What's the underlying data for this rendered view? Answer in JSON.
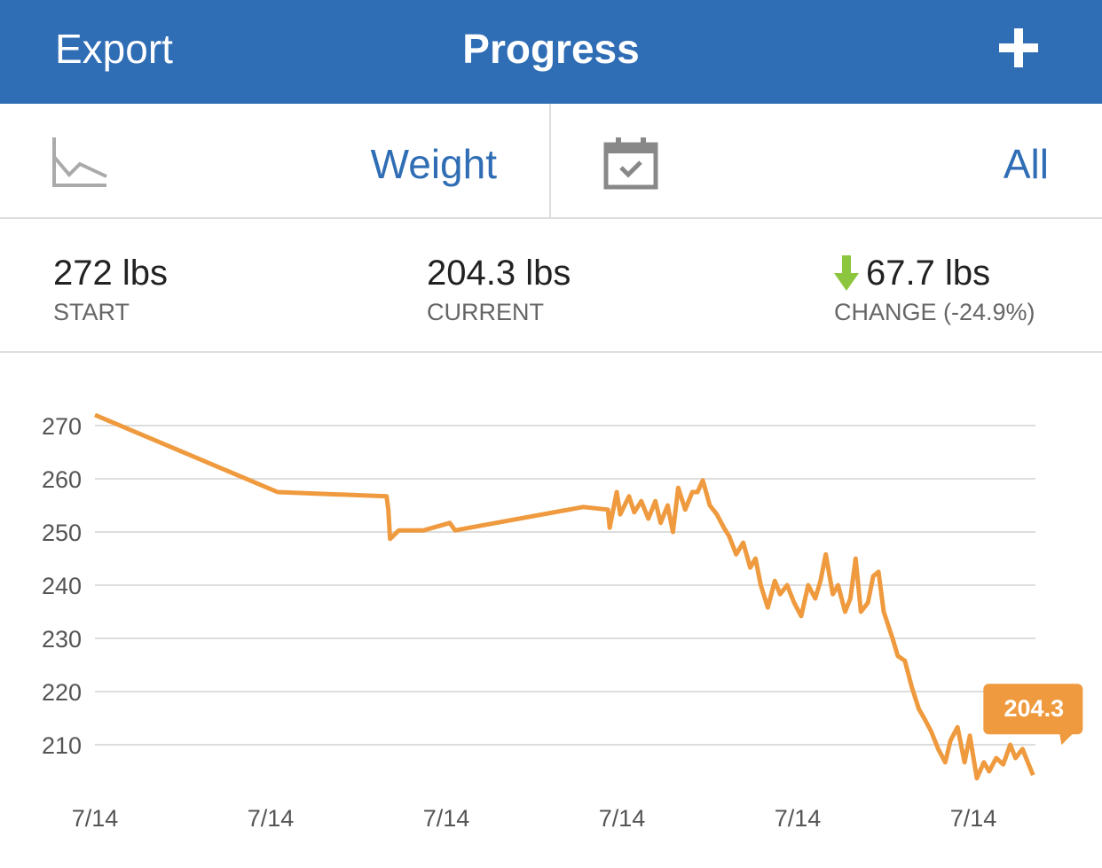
{
  "header": {
    "left": "Export",
    "title": "Progress"
  },
  "selector": {
    "metric": "Weight",
    "range": "All"
  },
  "stats": [
    {
      "value": "272 lbs",
      "label": "START"
    },
    {
      "value": "204.3 lbs",
      "label": "CURRENT"
    },
    {
      "value": "67.7 lbs",
      "label": "CHANGE (-24.9%)"
    }
  ],
  "chart_data": {
    "type": "line",
    "x": [
      0,
      1.04,
      1.66,
      1.67,
      1.68,
      1.73,
      1.87,
      2.02,
      2.05,
      2.78,
      2.92,
      2.93,
      2.97,
      2.99,
      3.04,
      3.07,
      3.11,
      3.15,
      3.19,
      3.22,
      3.26,
      3.29,
      3.32,
      3.36,
      3.4,
      3.43,
      3.46,
      3.5,
      3.54,
      3.58,
      3.61,
      3.65,
      3.69,
      3.73,
      3.76,
      3.79,
      3.83,
      3.87,
      3.9,
      3.94,
      3.98,
      4.02,
      4.06,
      4.1,
      4.13,
      4.16,
      4.2,
      4.23,
      4.27,
      4.3,
      4.33,
      4.36,
      4.4,
      4.43,
      4.46,
      4.49,
      4.54,
      4.57,
      4.61,
      4.65,
      4.69,
      4.72,
      4.76,
      4.8,
      4.84,
      4.87,
      4.91,
      4.95,
      4.98,
      5.02,
      5.06,
      5.09,
      5.13,
      5.17,
      5.21,
      5.24,
      5.28,
      5.31,
      5.34
    ],
    "series": [
      {
        "color": "#ef9a3e",
        "values": [
          272,
          257.5,
          256.7,
          254.2,
          248.7,
          250.3,
          250.3,
          251.7,
          250.3,
          254.7,
          254.2,
          250.8,
          257.5,
          253.3,
          256.7,
          253.7,
          255.8,
          252.5,
          255.8,
          251.7,
          255,
          250,
          258.3,
          254.2,
          257.5,
          257.5,
          259.7,
          255,
          253.3,
          250.8,
          249.2,
          245.8,
          248,
          243.3,
          245,
          240,
          235.8,
          240.8,
          238.3,
          240,
          236.7,
          234.2,
          240,
          237.5,
          240.8,
          245.8,
          238.3,
          240,
          235,
          237.5,
          245,
          235,
          236.7,
          241.7,
          242.5,
          235,
          230,
          226.7,
          225.8,
          220.8,
          216.7,
          215,
          212.5,
          209.2,
          206.7,
          210.8,
          213.3,
          206.7,
          211.7,
          203.7,
          206.7,
          205,
          207.5,
          206.3,
          210,
          207.5,
          209.2,
          206.7,
          204.3
        ]
      }
    ],
    "xlim": [
      0,
      5.35
    ],
    "xticks": [
      {
        "value": 0,
        "label": "7/14"
      },
      {
        "value": 1,
        "label": "7/14"
      },
      {
        "value": 2,
        "label": "7/14"
      },
      {
        "value": 3,
        "label": "7/14"
      },
      {
        "value": 4,
        "label": "7/14"
      },
      {
        "value": 5,
        "label": "7/14"
      }
    ],
    "ylim": [
      203,
      273
    ],
    "yticks": [
      210,
      220,
      230,
      240,
      250,
      260,
      270
    ],
    "grid": true
  }
}
